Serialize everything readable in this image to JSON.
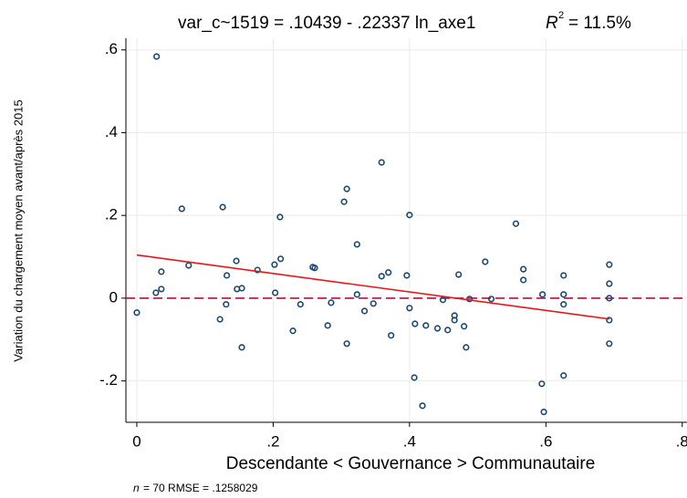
{
  "chart_data": {
    "type": "scatter",
    "title": "var_c~1519 = .10439 - .22337 ln_axe1",
    "r2_symbol": "R",
    "r2_exponent": "2",
    "r2_value": "= 11.5%",
    "x_label": "Descendante < Gouvernance > Communautaire",
    "y_label": "Variation du chargement moyen avant/après 2015",
    "footnote_n": "n",
    "footnote": "= 70    RMSE =  .1258029",
    "xlim": [
      -0.016,
      0.807
    ],
    "ylim": [
      -0.3,
      0.628
    ],
    "xticks": [
      0,
      {
        "value": 0.2,
        "label": ".2"
      },
      {
        "value": 0.4,
        "label": ".4"
      },
      {
        "value": 0.6,
        "label": ".6"
      },
      {
        "value": 0.8,
        "label": ".8"
      }
    ],
    "yticks": [
      {
        "value": -0.2,
        "label": "-.2"
      },
      0,
      {
        "value": 0.2,
        "label": ".2"
      },
      {
        "value": 0.4,
        "label": ".4"
      },
      {
        "value": 0.6,
        "label": ".6"
      }
    ],
    "grid": true,
    "color": "#1a476f",
    "x": [
      0,
      0.029,
      0.028,
      0.036,
      0.036,
      0.066,
      0.076,
      0.126,
      0.122,
      0.132,
      0.131,
      0.146,
      0.147,
      0.154,
      0.154,
      0.177,
      0.202,
      0.203,
      0.21,
      0.211,
      0.229,
      0.24,
      0.258,
      0.261,
      0.28,
      0.285,
      0.304,
      0.308,
      0.308,
      0.323,
      0.323,
      0.334,
      0.347,
      0.359,
      0.359,
      0.369,
      0.373,
      0.396,
      0.4,
      0.4,
      0.407,
      0.408,
      0.419,
      0.424,
      0.472,
      0.441,
      0.456,
      0.449,
      0.466,
      0.466,
      0.48,
      0.483,
      0.488,
      0.511,
      0.52,
      0.556,
      0.567,
      0.567,
      0.594,
      0.595,
      0.597,
      0.626,
      0.626,
      0.626,
      0.626,
      0.693,
      0.693,
      0.693,
      0.693,
      0.693
    ],
    "values": [
      -0.035,
      0.584,
      0.013,
      0.022,
      0.064,
      0.216,
      0.079,
      0.22,
      -0.051,
      0.055,
      -0.015,
      0.09,
      0.022,
      0.024,
      -0.119,
      0.068,
      0.081,
      0.013,
      0.196,
      0.095,
      -0.079,
      -0.015,
      0.075,
      0.073,
      -0.066,
      -0.011,
      0.233,
      0.264,
      -0.11,
      0.13,
      0.009,
      -0.031,
      -0.013,
      0.328,
      0.053,
      0.062,
      -0.09,
      0.055,
      0.201,
      -0.024,
      -0.192,
      -0.062,
      -0.26,
      -0.066,
      0.057,
      -0.073,
      -0.077,
      -0.004,
      -0.053,
      -0.042,
      -0.068,
      -0.119,
      -0.002,
      0.088,
      -0.002,
      0.18,
      0.044,
      0.07,
      -0.207,
      0.009,
      -0.275,
      0.055,
      0.009,
      -0.015,
      -0.187,
      0.081,
      0.035,
      0,
      -0.053,
      -0.11
    ],
    "fit": {
      "x": [
        0,
        0.693
      ],
      "values": [
        0.10439,
        -0.0504
      ],
      "color": "#e8161b"
    },
    "reference_line": {
      "value": 0,
      "color": "#b5123a",
      "dashed": true
    }
  }
}
